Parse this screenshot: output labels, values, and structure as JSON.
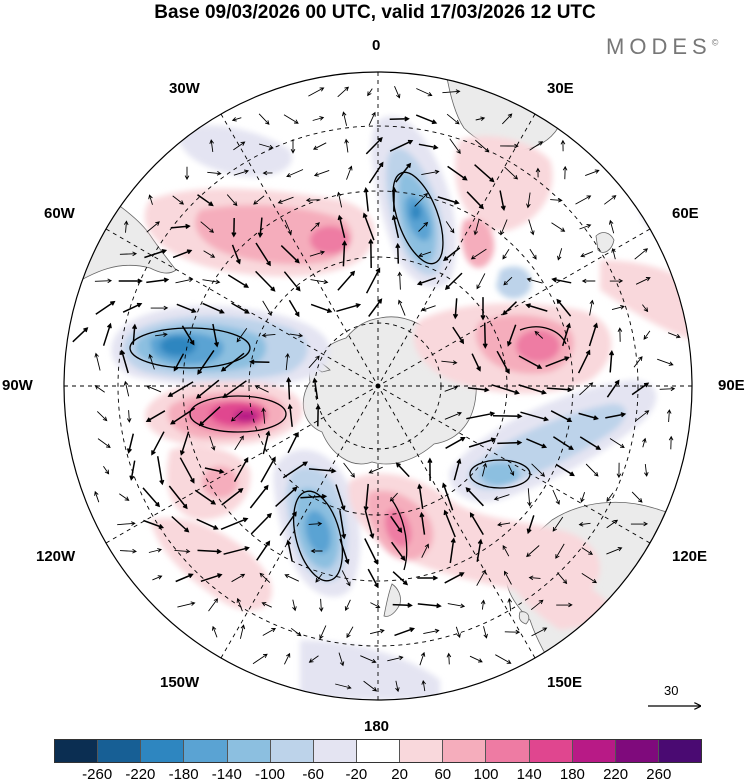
{
  "title": "Base 09/03/2026 00 UTC, valid 17/03/2026 12 UTC",
  "logo": "MODES",
  "logo_mark": "©",
  "meridian_labels": {
    "m0": "0",
    "m30e": "30E",
    "m60e": "60E",
    "m90e": "90E",
    "m120e": "120E",
    "m150e": "150E",
    "m180": "180",
    "m150w": "150W",
    "m120w": "120W",
    "m90w": "90W",
    "m60w": "60W",
    "m30w": "30W"
  },
  "reference_vector": "30",
  "colorbar": {
    "ticks": [
      "-260",
      "-220",
      "-180",
      "-140",
      "-100",
      "-60",
      "-20",
      "20",
      "60",
      "100",
      "140",
      "180",
      "220",
      "260"
    ],
    "colors": [
      "#0b2e52",
      "#175f95",
      "#2e86c0",
      "#5aa3d3",
      "#8cbfe0",
      "#bdd3ea",
      "#e4e4f2",
      "#ffffff",
      "#f9d8dc",
      "#f5adbc",
      "#ee7ba3",
      "#e0468f",
      "#b81a86",
      "#7f0a7c",
      "#4a0a72"
    ]
  },
  "colors": {
    "land": "#ebebeb",
    "coast": "#555555",
    "grid": "#000000"
  },
  "anomaly_centers": [
    {
      "name": "neg-pacific-west",
      "lon": -87,
      "lat": -55,
      "value": -200
    },
    {
      "name": "pos-pacific",
      "lon": -100,
      "lat": -62,
      "value": 200
    },
    {
      "name": "neg-atlantic",
      "lon": 10,
      "lat": -55,
      "value": -180
    },
    {
      "name": "pos-southatlantic",
      "lon": -35,
      "lat": -50,
      "value": 130
    },
    {
      "name": "pos-indian",
      "lon": 60,
      "lat": -50,
      "value": 140
    },
    {
      "name": "neg-indian",
      "lon": 110,
      "lat": -55,
      "value": -140
    },
    {
      "name": "pos-tasman",
      "lon": 160,
      "lat": -60,
      "value": 140
    },
    {
      "name": "neg-southpacific",
      "lon": -160,
      "lat": -55,
      "value": -160
    },
    {
      "name": "pos-southpacific",
      "lon": -130,
      "lat": -45,
      "value": 120
    }
  ]
}
